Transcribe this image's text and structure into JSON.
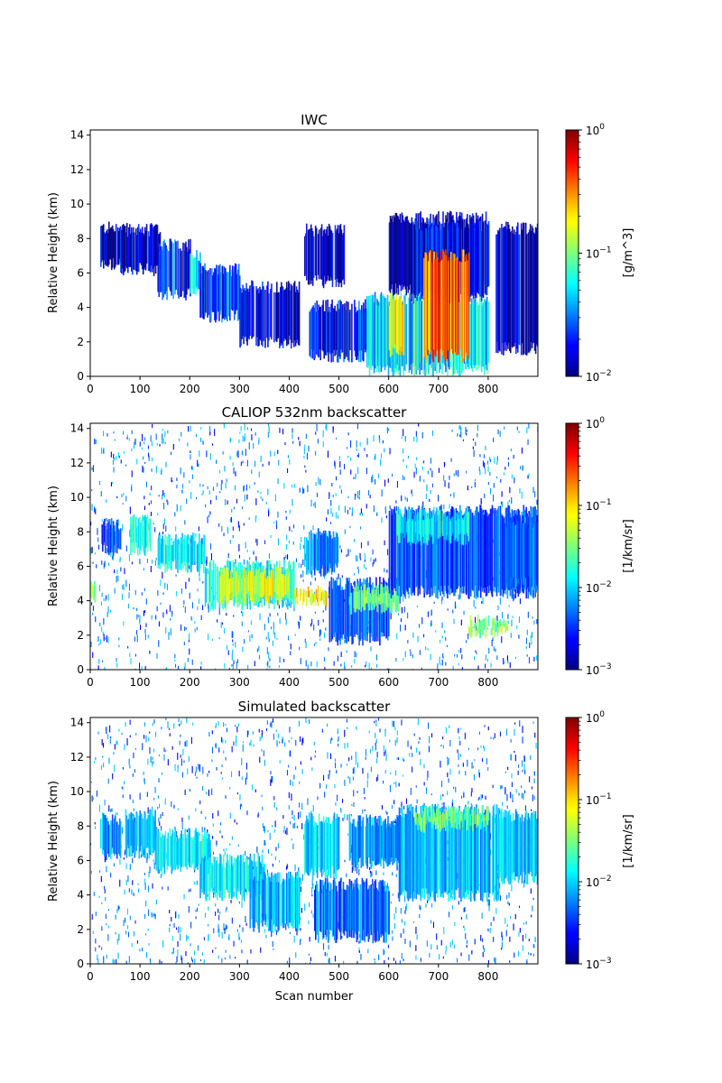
{
  "chart_data": [
    {
      "type": "heatmap",
      "title": "IWC",
      "xlabel": "",
      "ylabel": "Relative Height (km)",
      "xlim": [
        0,
        900
      ],
      "ylim": [
        0,
        14.3
      ],
      "xticks": [
        0,
        100,
        200,
        300,
        400,
        500,
        600,
        700,
        800
      ],
      "yticks": [
        0,
        2,
        4,
        6,
        8,
        10,
        12,
        14
      ],
      "colorbar": {
        "label": "[g/m^3]",
        "scale": "log",
        "min": 0.01,
        "max": 1,
        "colormap": "jet",
        "ticks": [
          {
            "value": 0.01,
            "label": "10",
            "exp": "−2"
          },
          {
            "value": 0.1,
            "label": "10",
            "exp": "−1"
          },
          {
            "value": 1,
            "label": "10",
            "exp": "0"
          }
        ]
      },
      "regions": [
        {
          "x": [
            20,
            60
          ],
          "y": [
            6.5,
            8.6
          ],
          "value": 0.012
        },
        {
          "x": [
            60,
            140
          ],
          "y": [
            6.2,
            8.5
          ],
          "value": 0.013
        },
        {
          "x": [
            135,
            200
          ],
          "y": [
            4.8,
            7.6
          ],
          "value": 0.02
        },
        {
          "x": [
            200,
            220
          ],
          "y": [
            4.8,
            7.0
          ],
          "value": 0.06
        },
        {
          "x": [
            220,
            300
          ],
          "y": [
            3.5,
            6.2
          ],
          "value": 0.02
        },
        {
          "x": [
            300,
            420
          ],
          "y": [
            2.0,
            5.2
          ],
          "value": 0.014
        },
        {
          "x": [
            430,
            510
          ],
          "y": [
            5.5,
            8.5
          ],
          "value": 0.012
        },
        {
          "x": [
            440,
            580
          ],
          "y": [
            1.2,
            4.1
          ],
          "value": 0.018
        },
        {
          "x": [
            555,
            800
          ],
          "y": [
            0.4,
            4.5
          ],
          "value": 0.05
        },
        {
          "x": [
            600,
            800
          ],
          "y": [
            5.0,
            9.2
          ],
          "value": 0.012
        },
        {
          "x": [
            645,
            790
          ],
          "y": [
            4.5,
            8.8
          ],
          "value": 0.015
        },
        {
          "x": [
            670,
            760
          ],
          "y": [
            1.2,
            7.0
          ],
          "value": 0.35
        },
        {
          "x": [
            600,
            630
          ],
          "y": [
            1.5,
            4.5
          ],
          "value": 0.2
        },
        {
          "x": [
            815,
            900
          ],
          "y": [
            1.6,
            8.6
          ],
          "value": 0.013
        }
      ]
    },
    {
      "type": "heatmap",
      "title": "CALIOP 532nm backscatter",
      "xlabel": "",
      "ylabel": "Relative Height (km)",
      "xlim": [
        0,
        900
      ],
      "ylim": [
        0,
        14.3
      ],
      "xticks": [
        0,
        100,
        200,
        300,
        400,
        500,
        600,
        700,
        800
      ],
      "yticks": [
        0,
        2,
        4,
        6,
        8,
        10,
        12,
        14
      ],
      "colorbar": {
        "label": "[1/km/sr]",
        "scale": "log",
        "min": 0.001,
        "max": 1,
        "colormap": "jet",
        "ticks": [
          {
            "value": 0.001,
            "label": "10",
            "exp": "−3"
          },
          {
            "value": 0.01,
            "label": "10",
            "exp": "−2"
          },
          {
            "value": 0.1,
            "label": "10",
            "exp": "−1"
          },
          {
            "value": 1,
            "label": "10",
            "exp": "0"
          }
        ]
      },
      "regions": [
        {
          "x": [
            0,
            10
          ],
          "y": [
            4.2,
            4.9
          ],
          "value": 0.04
        },
        {
          "x": [
            20,
            60
          ],
          "y": [
            7.0,
            8.4
          ],
          "value": 0.005
        },
        {
          "x": [
            80,
            120
          ],
          "y": [
            7.0,
            8.6
          ],
          "value": 0.015
        },
        {
          "x": [
            135,
            230
          ],
          "y": [
            6.0,
            7.6
          ],
          "value": 0.012
        },
        {
          "x": [
            230,
            410
          ],
          "y": [
            3.8,
            6.0
          ],
          "value": 0.015
        },
        {
          "x": [
            260,
            400
          ],
          "y": [
            4.2,
            5.6
          ],
          "value": 0.06
        },
        {
          "x": [
            410,
            480
          ],
          "y": [
            4.0,
            4.5
          ],
          "value": 0.08
        },
        {
          "x": [
            430,
            500
          ],
          "y": [
            5.8,
            7.9
          ],
          "value": 0.006
        },
        {
          "x": [
            480,
            600
          ],
          "y": [
            1.8,
            5.0
          ],
          "value": 0.004
        },
        {
          "x": [
            520,
            620
          ],
          "y": [
            3.6,
            4.6
          ],
          "value": 0.03
        },
        {
          "x": [
            600,
            900
          ],
          "y": [
            4.5,
            9.2
          ],
          "value": 0.004
        },
        {
          "x": [
            610,
            760
          ],
          "y": [
            7.6,
            9.0
          ],
          "value": 0.012
        },
        {
          "x": [
            760,
            840
          ],
          "y": [
            2.2,
            2.8
          ],
          "value": 0.03
        },
        {
          "x": [
            830,
            900
          ],
          "y": [
            5.0,
            8.5
          ],
          "value": 0.005
        }
      ],
      "noise_level": 0.0015
    },
    {
      "type": "heatmap",
      "title": "Simulated backscatter",
      "xlabel": "Scan number",
      "ylabel": "Relative Height (km)",
      "xlim": [
        0,
        900
      ],
      "ylim": [
        0,
        14.3
      ],
      "xticks": [
        0,
        100,
        200,
        300,
        400,
        500,
        600,
        700,
        800
      ],
      "yticks": [
        0,
        2,
        4,
        6,
        8,
        10,
        12,
        14
      ],
      "colorbar": {
        "label": "[1/km/sr]",
        "scale": "log",
        "min": 0.001,
        "max": 1,
        "colormap": "jet",
        "ticks": [
          {
            "value": 0.001,
            "label": "10",
            "exp": "−3"
          },
          {
            "value": 0.01,
            "label": "10",
            "exp": "−2"
          },
          {
            "value": 0.1,
            "label": "10",
            "exp": "−1"
          },
          {
            "value": 1,
            "label": "10",
            "exp": "0"
          }
        ]
      },
      "regions": [
        {
          "x": [
            20,
            60
          ],
          "y": [
            6.4,
            8.4
          ],
          "value": 0.006
        },
        {
          "x": [
            70,
            130
          ],
          "y": [
            6.5,
            8.6
          ],
          "value": 0.008
        },
        {
          "x": [
            130,
            240
          ],
          "y": [
            5.5,
            7.5
          ],
          "value": 0.012
        },
        {
          "x": [
            220,
            350
          ],
          "y": [
            4.0,
            6.0
          ],
          "value": 0.012
        },
        {
          "x": [
            320,
            420
          ],
          "y": [
            2.2,
            5.0
          ],
          "value": 0.008
        },
        {
          "x": [
            430,
            500
          ],
          "y": [
            5.3,
            8.4
          ],
          "value": 0.01
        },
        {
          "x": [
            450,
            600
          ],
          "y": [
            1.6,
            4.6
          ],
          "value": 0.005
        },
        {
          "x": [
            520,
            620
          ],
          "y": [
            5.8,
            8.3
          ],
          "value": 0.006
        },
        {
          "x": [
            620,
            820
          ],
          "y": [
            4.0,
            8.9
          ],
          "value": 0.008
        },
        {
          "x": [
            650,
            800
          ],
          "y": [
            8.0,
            8.8
          ],
          "value": 0.03
        },
        {
          "x": [
            820,
            900
          ],
          "y": [
            5.0,
            8.6
          ],
          "value": 0.01
        }
      ],
      "noise_level": 0.0015
    }
  ]
}
